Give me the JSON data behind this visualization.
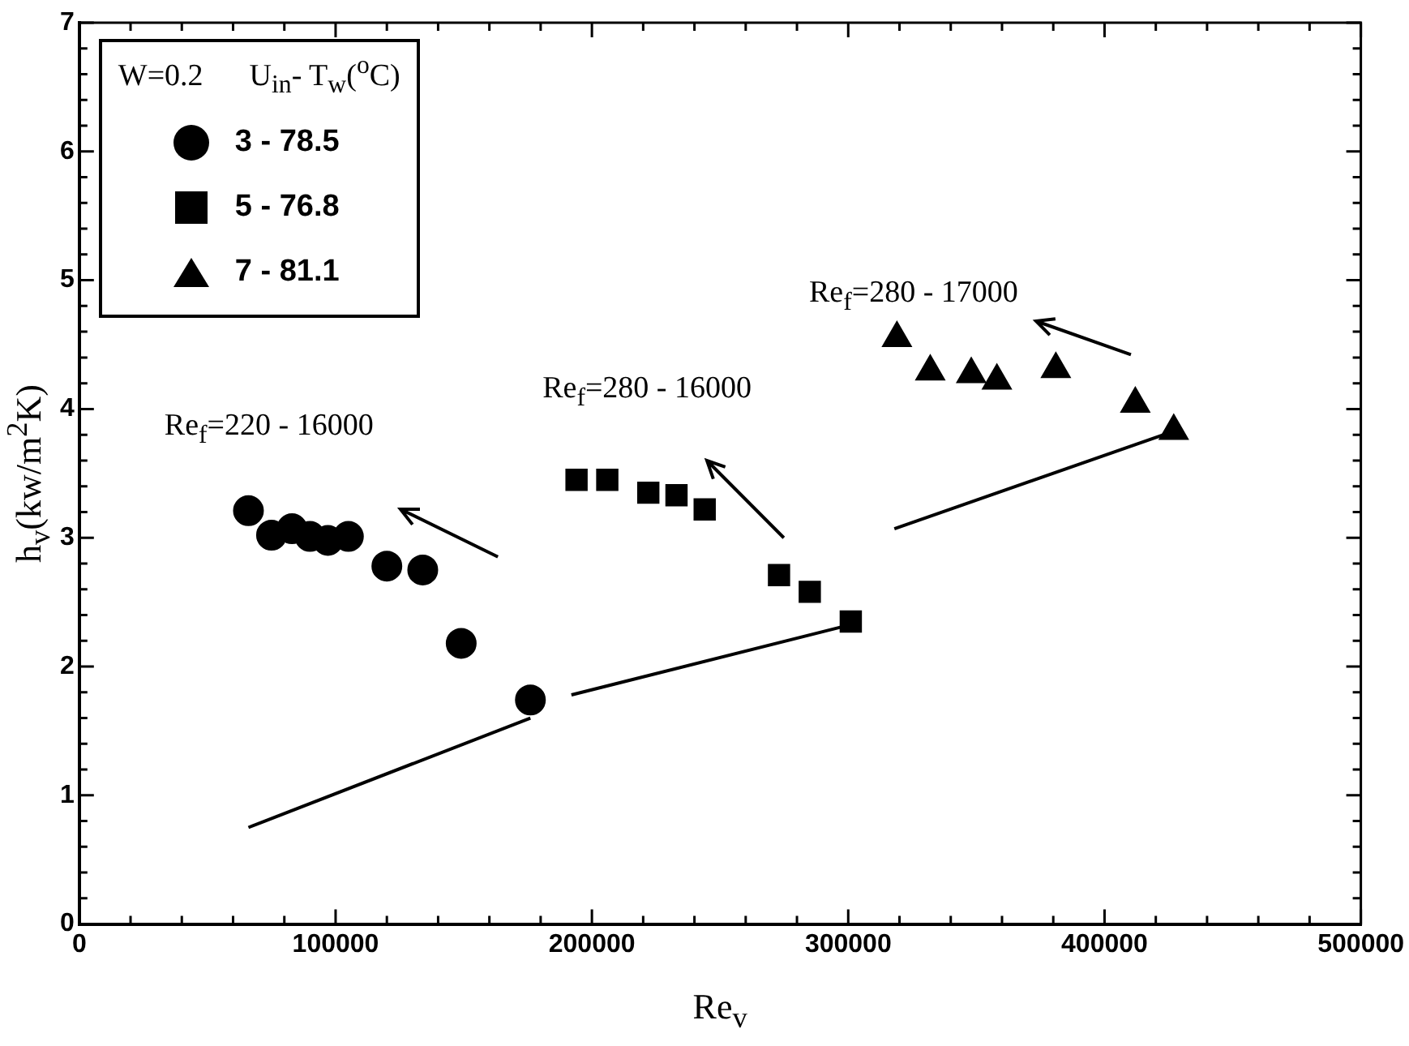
{
  "chart_data": {
    "type": "scatter",
    "xlabel": "Re$_{v}$",
    "ylabel": "h$_{v}$(kw/m$^{2}$K)",
    "legend_title": "W=0.2      U$_{in}$- T$_{w}$($^{o}$C)",
    "xlim": [
      0,
      500000
    ],
    "ylim": [
      0,
      7
    ],
    "xticks": [
      0,
      {
        "value": 20000,
        "label": null
      },
      {
        "value": 40000,
        "label": null
      },
      {
        "value": 60000,
        "label": null
      },
      {
        "value": 80000,
        "label": null
      },
      100000,
      {
        "value": 120000,
        "label": null
      },
      {
        "value": 140000,
        "label": null
      },
      {
        "value": 160000,
        "label": null
      },
      {
        "value": 180000,
        "label": null
      },
      200000,
      {
        "value": 220000,
        "label": null
      },
      {
        "value": 240000,
        "label": null
      },
      {
        "value": 260000,
        "label": null
      },
      {
        "value": 280000,
        "label": null
      },
      300000,
      {
        "value": 320000,
        "label": null
      },
      {
        "value": 340000,
        "label": null
      },
      {
        "value": 360000,
        "label": null
      },
      {
        "value": 380000,
        "label": null
      },
      400000,
      {
        "value": 420000,
        "label": null
      },
      {
        "value": 440000,
        "label": null
      },
      {
        "value": 460000,
        "label": null
      },
      {
        "value": 480000,
        "label": null
      },
      500000
    ],
    "yticks": [
      0,
      {
        "value": 0.2,
        "label": null
      },
      {
        "value": 0.4,
        "label": null
      },
      {
        "value": 0.6,
        "label": null
      },
      {
        "value": 0.8,
        "label": null
      },
      1,
      {
        "value": 1.2,
        "label": null
      },
      {
        "value": 1.4,
        "label": null
      },
      {
        "value": 1.6,
        "label": null
      },
      {
        "value": 1.8,
        "label": null
      },
      2,
      {
        "value": 2.2,
        "label": null
      },
      {
        "value": 2.4,
        "label": null
      },
      {
        "value": 2.6,
        "label": null
      },
      {
        "value": 2.8,
        "label": null
      },
      3,
      {
        "value": 3.2,
        "label": null
      },
      {
        "value": 3.4,
        "label": null
      },
      {
        "value": 3.6,
        "label": null
      },
      {
        "value": 3.8,
        "label": null
      },
      4,
      {
        "value": 4.2,
        "label": null
      },
      {
        "value": 4.4,
        "label": null
      },
      {
        "value": 4.6,
        "label": null
      },
      {
        "value": 4.8,
        "label": null
      },
      5,
      {
        "value": 5.2,
        "label": null
      },
      {
        "value": 5.4,
        "label": null
      },
      {
        "value": 5.6,
        "label": null
      },
      {
        "value": 5.8,
        "label": null
      },
      6,
      {
        "value": 6.2,
        "label": null
      },
      {
        "value": 6.4,
        "label": null
      },
      {
        "value": 6.6,
        "label": null
      },
      {
        "value": 6.8,
        "label": null
      },
      7
    ],
    "grid": false,
    "legend": "top left",
    "series": [
      {
        "name": "3 - 78.5",
        "color": "#000000",
        "marker": "circle",
        "x": [
          66000,
          75000,
          83000,
          90000,
          97000,
          105000,
          120000,
          134000,
          149000,
          176000
        ],
        "values": [
          3.21,
          3.02,
          3.07,
          3.01,
          2.98,
          3.01,
          2.78,
          2.75,
          2.18,
          1.74
        ]
      },
      {
        "name": "5 - 76.8",
        "color": "#000000",
        "marker": "square",
        "x": [
          194000,
          206000,
          222000,
          233000,
          244000,
          273000,
          285000,
          301000
        ],
        "values": [
          3.45,
          3.45,
          3.35,
          3.33,
          3.22,
          2.71,
          2.58,
          2.35
        ]
      },
      {
        "name": "7 - 81.1",
        "color": "#000000",
        "marker": "triangle",
        "x": [
          319000,
          332000,
          348000,
          358000,
          381000,
          412000,
          427000
        ],
        "values": [
          4.55,
          4.29,
          4.27,
          4.22,
          4.31,
          4.04,
          3.83
        ]
      },
      {
        "type": "line",
        "color": "#000000",
        "marker": "none",
        "x": [
          66000,
          176000
        ],
        "values": [
          0.75,
          1.6
        ]
      },
      {
        "type": "line",
        "color": "#000000",
        "marker": "none",
        "x": [
          192000,
          300000
        ],
        "values": [
          1.78,
          2.32
        ]
      },
      {
        "type": "line",
        "color": "#000000",
        "marker": "none",
        "x": [
          318000,
          426000
        ],
        "values": [
          3.07,
          3.82
        ]
      }
    ],
    "annotations": [
      "Re$_{f}$=220 - 16000",
      "Re$_{f}$=280 - 16000",
      "Re$_{f}$=280 - 17000"
    ]
  }
}
